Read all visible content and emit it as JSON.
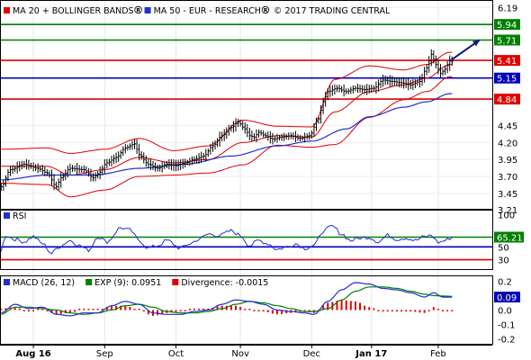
{
  "chart_data": [
    {
      "type": "candlestick",
      "panel": "price",
      "ylim": [
        3.21,
        6.3
      ],
      "ticks": [
        3.21,
        3.45,
        3.7,
        3.95,
        4.2,
        4.45,
        4.84,
        5.15,
        5.41,
        5.71,
        5.94,
        6.19
      ],
      "tick_labels": [
        "3.21",
        "3.45",
        "3.70",
        "3.95",
        "4.20",
        "4.45",
        "4.84",
        "5.15",
        "5.41",
        "5.71",
        "5.94",
        "6.19"
      ],
      "legend": [
        {
          "label": "MA 20 + BOLLINGER BANDS",
          "color": "#e00000",
          "marker": "circled-r"
        },
        {
          "label": "MA 50 - EUR - RESEARCH",
          "color": "#2030d0",
          "marker": "circled-r"
        }
      ],
      "copyright": "© 2017 TRADING CENTRAL",
      "levels": [
        {
          "value": 5.94,
          "label": "5.94",
          "color": "#008000"
        },
        {
          "value": 5.71,
          "label": "5.71",
          "color": "#008000"
        },
        {
          "value": 5.41,
          "label": "5.41",
          "color": "#e00000"
        },
        {
          "value": 5.15,
          "label": "5.15",
          "color": "#0000c0"
        },
        {
          "value": 4.84,
          "label": "4.84",
          "color": "#e00000"
        }
      ],
      "anchors": {
        "close": [
          [
            0,
            3.55
          ],
          [
            4,
            3.8
          ],
          [
            10,
            3.88
          ],
          [
            16,
            3.82
          ],
          [
            20,
            3.75
          ],
          [
            24,
            3.55
          ],
          [
            26,
            3.68
          ],
          [
            30,
            3.82
          ],
          [
            36,
            3.8
          ],
          [
            40,
            3.68
          ],
          [
            42,
            3.74
          ],
          [
            46,
            3.9
          ],
          [
            50,
            3.98
          ],
          [
            54,
            4.12
          ],
          [
            58,
            4.18
          ],
          [
            60,
            4.02
          ],
          [
            64,
            3.88
          ],
          [
            68,
            3.82
          ],
          [
            72,
            3.88
          ],
          [
            76,
            3.86
          ],
          [
            80,
            3.9
          ],
          [
            84,
            3.95
          ],
          [
            88,
            4.0
          ],
          [
            92,
            4.15
          ],
          [
            96,
            4.3
          ],
          [
            100,
            4.42
          ],
          [
            103,
            4.5
          ],
          [
            106,
            4.4
          ],
          [
            108,
            4.3
          ],
          [
            110,
            4.28
          ],
          [
            112,
            4.35
          ],
          [
            115,
            4.3
          ],
          [
            118,
            4.25
          ],
          [
            122,
            4.28
          ],
          [
            126,
            4.3
          ],
          [
            130,
            4.26
          ],
          [
            134,
            4.3
          ],
          [
            138,
            4.55
          ],
          [
            140,
            4.8
          ],
          [
            142,
            4.95
          ],
          [
            146,
            5.0
          ],
          [
            150,
            4.95
          ],
          [
            154,
            5.0
          ],
          [
            158,
            4.98
          ],
          [
            162,
            5.0
          ],
          [
            166,
            5.12
          ],
          [
            170,
            5.1
          ],
          [
            174,
            5.08
          ],
          [
            178,
            5.05
          ],
          [
            182,
            5.1
          ],
          [
            185,
            5.3
          ],
          [
            187,
            5.5
          ],
          [
            189,
            5.35
          ],
          [
            191,
            5.22
          ],
          [
            193,
            5.28
          ],
          [
            195,
            5.4
          ]
        ],
        "ma20": [
          [
            0,
            3.85
          ],
          [
            20,
            3.85
          ],
          [
            30,
            3.72
          ],
          [
            45,
            3.8
          ],
          [
            60,
            3.98
          ],
          [
            75,
            3.9
          ],
          [
            90,
            3.95
          ],
          [
            105,
            4.2
          ],
          [
            120,
            4.3
          ],
          [
            135,
            4.28
          ],
          [
            145,
            4.65
          ],
          [
            160,
            4.95
          ],
          [
            175,
            5.05
          ],
          [
            185,
            5.15
          ],
          [
            195,
            5.35
          ]
        ],
        "ma50": [
          [
            0,
            3.65
          ],
          [
            20,
            3.72
          ],
          [
            40,
            3.72
          ],
          [
            60,
            3.82
          ],
          [
            80,
            3.88
          ],
          [
            100,
            4.0
          ],
          [
            120,
            4.15
          ],
          [
            135,
            4.22
          ],
          [
            150,
            4.4
          ],
          [
            160,
            4.58
          ],
          [
            175,
            4.72
          ],
          [
            185,
            4.8
          ],
          [
            195,
            4.92
          ]
        ],
        "bw": [
          [
            0,
            0.25
          ],
          [
            20,
            0.27
          ],
          [
            30,
            0.32
          ],
          [
            45,
            0.3
          ],
          [
            60,
            0.28
          ],
          [
            75,
            0.18
          ],
          [
            90,
            0.2
          ],
          [
            105,
            0.33
          ],
          [
            120,
            0.14
          ],
          [
            135,
            0.15
          ],
          [
            145,
            0.48
          ],
          [
            160,
            0.38
          ],
          [
            175,
            0.22
          ],
          [
            185,
            0.2
          ],
          [
            195,
            0.18
          ]
        ]
      },
      "projection_arrow": [
        [
          195,
          5.4
        ],
        [
          208,
          5.71
        ]
      ]
    },
    {
      "type": "line",
      "panel": "rsi",
      "title": "RSI",
      "ylim": [
        14,
        108
      ],
      "ticks": [
        100,
        65.21,
        50,
        30
      ],
      "tick_labels": [
        "100",
        "65.21",
        "50",
        "30"
      ],
      "levels": [
        {
          "value": 65.21,
          "label": "65.21",
          "color": "#008000",
          "highlight": true
        },
        {
          "value": 50,
          "label": "50",
          "color": "#0000c0"
        },
        {
          "value": 30,
          "label": "30",
          "color": "#e00000"
        }
      ],
      "series": [
        {
          "color": "#2030d0",
          "anchors": [
            [
              0,
              45
            ],
            [
              2,
              68
            ],
            [
              6,
              62
            ],
            [
              10,
              58
            ],
            [
              14,
              66
            ],
            [
              18,
              55
            ],
            [
              22,
              40
            ],
            [
              25,
              50
            ],
            [
              30,
              60
            ],
            [
              34,
              52
            ],
            [
              38,
              45
            ],
            [
              42,
              66
            ],
            [
              46,
              58
            ],
            [
              52,
              80
            ],
            [
              56,
              76
            ],
            [
              60,
              60
            ],
            [
              64,
              48
            ],
            [
              68,
              52
            ],
            [
              72,
              60
            ],
            [
              78,
              48
            ],
            [
              82,
              55
            ],
            [
              86,
              62
            ],
            [
              90,
              70
            ],
            [
              95,
              68
            ],
            [
              100,
              75
            ],
            [
              104,
              68
            ],
            [
              108,
              52
            ],
            [
              112,
              60
            ],
            [
              116,
              55
            ],
            [
              120,
              46
            ],
            [
              124,
              50
            ],
            [
              128,
              55
            ],
            [
              132,
              48
            ],
            [
              136,
              52
            ],
            [
              140,
              75
            ],
            [
              144,
              82
            ],
            [
              148,
              70
            ],
            [
              152,
              60
            ],
            [
              156,
              64
            ],
            [
              160,
              65
            ],
            [
              164,
              58
            ],
            [
              168,
              68
            ],
            [
              172,
              62
            ],
            [
              176,
              64
            ],
            [
              180,
              60
            ],
            [
              184,
              66
            ],
            [
              187,
              68
            ],
            [
              190,
              57
            ],
            [
              193,
              60
            ],
            [
              196,
              65
            ]
          ]
        }
      ]
    },
    {
      "type": "line+bar",
      "panel": "macd",
      "ylim": [
        -0.24,
        0.24
      ],
      "ticks": [
        0.2,
        0.1,
        0.09,
        0.0,
        -0.1,
        -0.2
      ],
      "tick_labels": [
        "0.2",
        "0.1",
        "0.09",
        "0.0",
        "-0.1",
        "-0.2"
      ],
      "levels": [
        {
          "value": 0.09,
          "label": "0.09",
          "color": "#0000c0",
          "highlight": true
        }
      ],
      "legend": [
        {
          "label": "MACD (26, 12)",
          "color": "#2030d0"
        },
        {
          "label": "EXP (9): 0.0951",
          "color": "#008000"
        },
        {
          "label": "Divergence: -0.0015",
          "color": "#e00000"
        }
      ],
      "series": [
        {
          "name": "MACD (26, 12)",
          "color": "#2030d0",
          "anchors": [
            [
              0,
              -0.02
            ],
            [
              6,
              0.04
            ],
            [
              12,
              0.01
            ],
            [
              18,
              0.02
            ],
            [
              24,
              -0.03
            ],
            [
              30,
              -0.04
            ],
            [
              36,
              -0.02
            ],
            [
              42,
              -0.02
            ],
            [
              48,
              0.03
            ],
            [
              54,
              0.06
            ],
            [
              60,
              0.04
            ],
            [
              66,
              -0.02
            ],
            [
              72,
              -0.03
            ],
            [
              78,
              -0.03
            ],
            [
              84,
              -0.01
            ],
            [
              90,
              0.0
            ],
            [
              96,
              0.04
            ],
            [
              102,
              0.07
            ],
            [
              108,
              0.06
            ],
            [
              114,
              0.04
            ],
            [
              120,
              0.0
            ],
            [
              126,
              -0.01
            ],
            [
              132,
              -0.02
            ],
            [
              136,
              -0.03
            ],
            [
              142,
              0.06
            ],
            [
              148,
              0.14
            ],
            [
              154,
              0.19
            ],
            [
              160,
              0.18
            ],
            [
              166,
              0.15
            ],
            [
              172,
              0.14
            ],
            [
              178,
              0.12
            ],
            [
              184,
              0.09
            ],
            [
              188,
              0.12
            ],
            [
              192,
              0.09
            ],
            [
              196,
              0.09
            ]
          ]
        },
        {
          "name": "EXP (9)",
          "color": "#008000",
          "anchors": [
            [
              0,
              -0.03
            ],
            [
              6,
              0.02
            ],
            [
              12,
              0.02
            ],
            [
              18,
              0.01
            ],
            [
              24,
              0.0
            ],
            [
              30,
              -0.02
            ],
            [
              36,
              -0.03
            ],
            [
              42,
              -0.02
            ],
            [
              48,
              0.0
            ],
            [
              54,
              0.03
            ],
            [
              60,
              0.04
            ],
            [
              66,
              0.02
            ],
            [
              72,
              -0.01
            ],
            [
              78,
              -0.02
            ],
            [
              84,
              -0.02
            ],
            [
              90,
              -0.01
            ],
            [
              96,
              0.01
            ],
            [
              102,
              0.04
            ],
            [
              108,
              0.06
            ],
            [
              114,
              0.05
            ],
            [
              120,
              0.03
            ],
            [
              126,
              0.01
            ],
            [
              132,
              -0.01
            ],
            [
              136,
              -0.01
            ],
            [
              142,
              0.01
            ],
            [
              148,
              0.07
            ],
            [
              154,
              0.13
            ],
            [
              160,
              0.16
            ],
            [
              166,
              0.16
            ],
            [
              172,
              0.15
            ],
            [
              178,
              0.13
            ],
            [
              184,
              0.11
            ],
            [
              188,
              0.1
            ],
            [
              192,
              0.097
            ],
            [
              196,
              0.095
            ]
          ]
        }
      ],
      "divergence": {
        "label": "Divergence",
        "color": "#e00000",
        "value": -0.0015,
        "bar_gap": 2
      }
    }
  ],
  "x_axis": {
    "labels": [
      {
        "text": "Aug 16",
        "bold": true,
        "at": 14
      },
      {
        "text": "Sep",
        "bold": false,
        "at": 45
      },
      {
        "text": "Oct",
        "bold": false,
        "at": 76
      },
      {
        "text": "Nov",
        "bold": false,
        "at": 104
      },
      {
        "text": "Dec",
        "bold": false,
        "at": 135
      },
      {
        "text": "Jan 17",
        "bold": true,
        "at": 161
      },
      {
        "text": "Feb",
        "bold": false,
        "at": 190
      }
    ]
  }
}
